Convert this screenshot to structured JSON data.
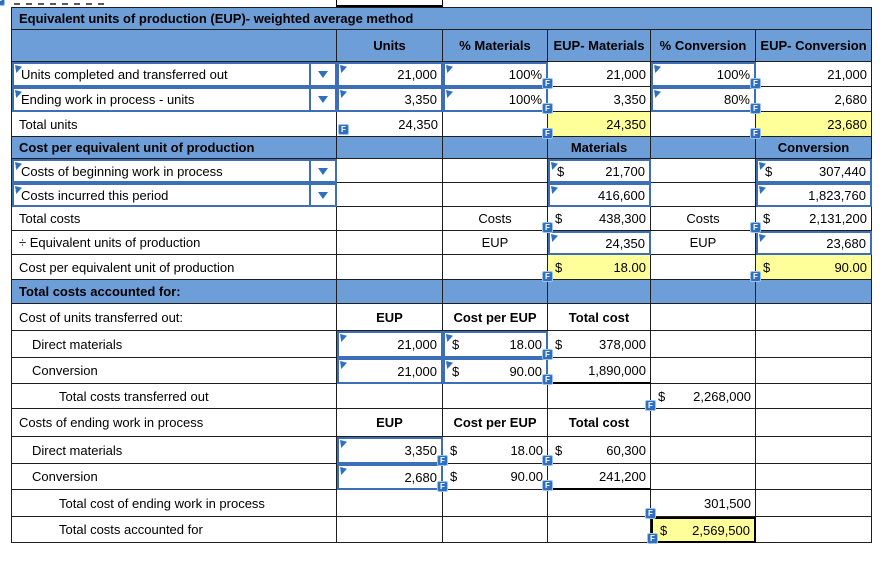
{
  "title": "Equivalent units of production (EUP)- weighted average method",
  "columns": {
    "units": "Units",
    "pct_m": "% Materials",
    "eup_m": "EUP- Materials",
    "pct_c": "% Conversion",
    "eup_c": "EUP- Conversion"
  },
  "icons": {
    "f": "F"
  },
  "colors": {
    "band_blue": "#6d9ed8",
    "input_border_blue": "#3c6fb8",
    "badge_blue": "#2f6fc0",
    "highlight_yellow": "#ffff99"
  },
  "s1": {
    "rows": [
      {
        "label": "Units completed and transferred out",
        "units": "21,000",
        "pct_m": "100%",
        "eup_m": "21,000",
        "pct_c": "100%",
        "eup_c": "21,000"
      },
      {
        "label": "Ending work in process - units",
        "units": "3,350",
        "pct_m": "100%",
        "eup_m": "3,350",
        "pct_c": "80%",
        "eup_c": "2,680"
      }
    ],
    "total": {
      "label": "Total units",
      "units": "24,350",
      "eup_m": "24,350",
      "eup_c": "23,680"
    }
  },
  "s2": {
    "header": "Cost per equivalent unit of production",
    "materials_head": "Materials",
    "conversion_head": "Conversion",
    "rows": [
      {
        "label": "Costs of beginning work in process",
        "m_d": "$",
        "m": "21,700",
        "c_d": "$",
        "c": "307,440"
      },
      {
        "label": "Costs incurred this period",
        "m": "416,600",
        "c": "1,823,760"
      }
    ],
    "total": {
      "label": "Total costs",
      "tag_m": "Costs",
      "m_d": "$",
      "m": "438,300",
      "tag_c": "Costs",
      "c_d": "$",
      "c": "2,131,200"
    },
    "eup": {
      "label": "÷ Equivalent units of production",
      "tag_m": "EUP",
      "m": "24,350",
      "tag_c": "EUP",
      "c": "23,680"
    },
    "unit": {
      "label": "Cost per equivalent unit of production",
      "m_d": "$",
      "m": "18.00",
      "c_d": "$",
      "c": "90.00"
    }
  },
  "s3": {
    "header": "Total costs accounted for:",
    "t": {
      "label": "Cost of units transferred out:",
      "col_eup": "EUP",
      "col_cpe": "Cost per EUP",
      "col_tc": "Total cost",
      "rows": [
        {
          "label": "Direct materials",
          "eup": "21,000",
          "cpe_d": "$",
          "cpe": "18.00",
          "tc_d": "$",
          "tc": "378,000"
        },
        {
          "label": "Conversion",
          "eup": "21,000",
          "cpe_d": "$",
          "cpe": "90.00",
          "tc": "1,890,000"
        }
      ],
      "total": {
        "label": "Total costs transferred out",
        "d": "$",
        "v": "2,268,000"
      }
    },
    "e": {
      "label": "Costs of ending work in process",
      "col_eup": "EUP",
      "col_cpe": "Cost per EUP",
      "col_tc": "Total cost",
      "rows": [
        {
          "label": "Direct materials",
          "eup": "3,350",
          "cpe_d": "$",
          "cpe": "18.00",
          "tc_d": "$",
          "tc": "60,300"
        },
        {
          "label": "Conversion",
          "eup": "2,680",
          "cpe_d": "$",
          "cpe": "90.00",
          "tc": "241,200"
        }
      ],
      "total": {
        "label": "Total cost of ending work in process",
        "v": "301,500"
      },
      "grand": {
        "label": "Total costs accounted for",
        "d": "$",
        "v": "2,569,500"
      }
    }
  }
}
